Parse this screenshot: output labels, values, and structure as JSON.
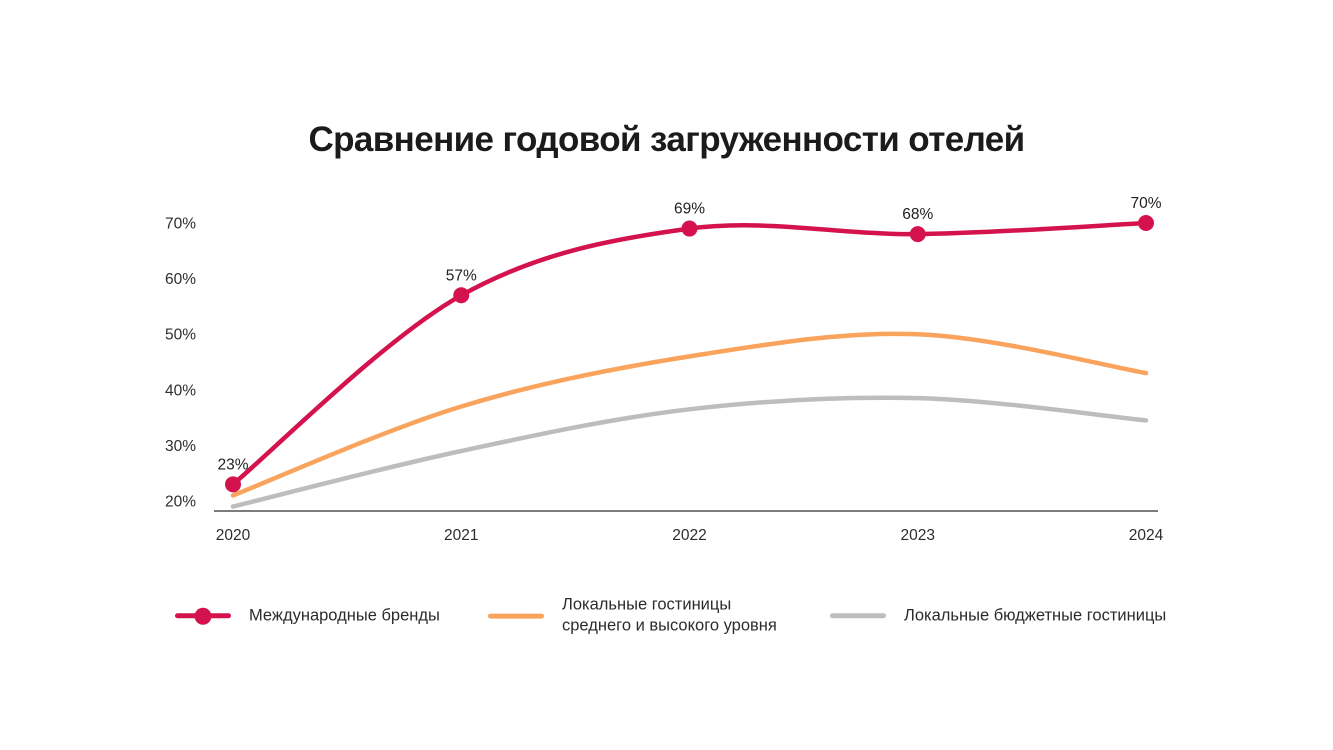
{
  "title": "Сравнение годовой загруженности отелей",
  "chart_data": {
    "type": "line",
    "title": "Сравнение годовой загруженности отелей",
    "categories": [
      "2020",
      "2021",
      "2022",
      "2023",
      "2024"
    ],
    "series": [
      {
        "id": "international-brands",
        "name": "Международные бренды",
        "color": "#d4134e",
        "marker": true,
        "values": [
          23,
          57,
          69,
          68,
          70
        ],
        "data_labels": [
          "23%",
          "57%",
          "69%",
          "68%",
          "70%"
        ]
      },
      {
        "id": "local-midscale-hotels",
        "name": "Локальные гостиницы среднего и высокого уровня",
        "color": "#f9a35c",
        "marker": false,
        "values": [
          21,
          37,
          46,
          50,
          43
        ]
      },
      {
        "id": "local-budget-hotels",
        "name": "Локальные бюджетные гостиницы",
        "color": "#bdbdbd",
        "marker": false,
        "values": [
          19,
          29,
          36.5,
          38.5,
          34.5
        ]
      }
    ],
    "xlabel": "",
    "ylabel": "",
    "y_ticks": [
      "20%",
      "30%",
      "40%",
      "50%",
      "60%",
      "70%"
    ],
    "ylim": [
      18,
      72
    ],
    "grid": false,
    "legend_position": "bottom",
    "axis_color": "#4e5055",
    "background_color": "#ffffff",
    "text_color": "#2d2d2d"
  }
}
